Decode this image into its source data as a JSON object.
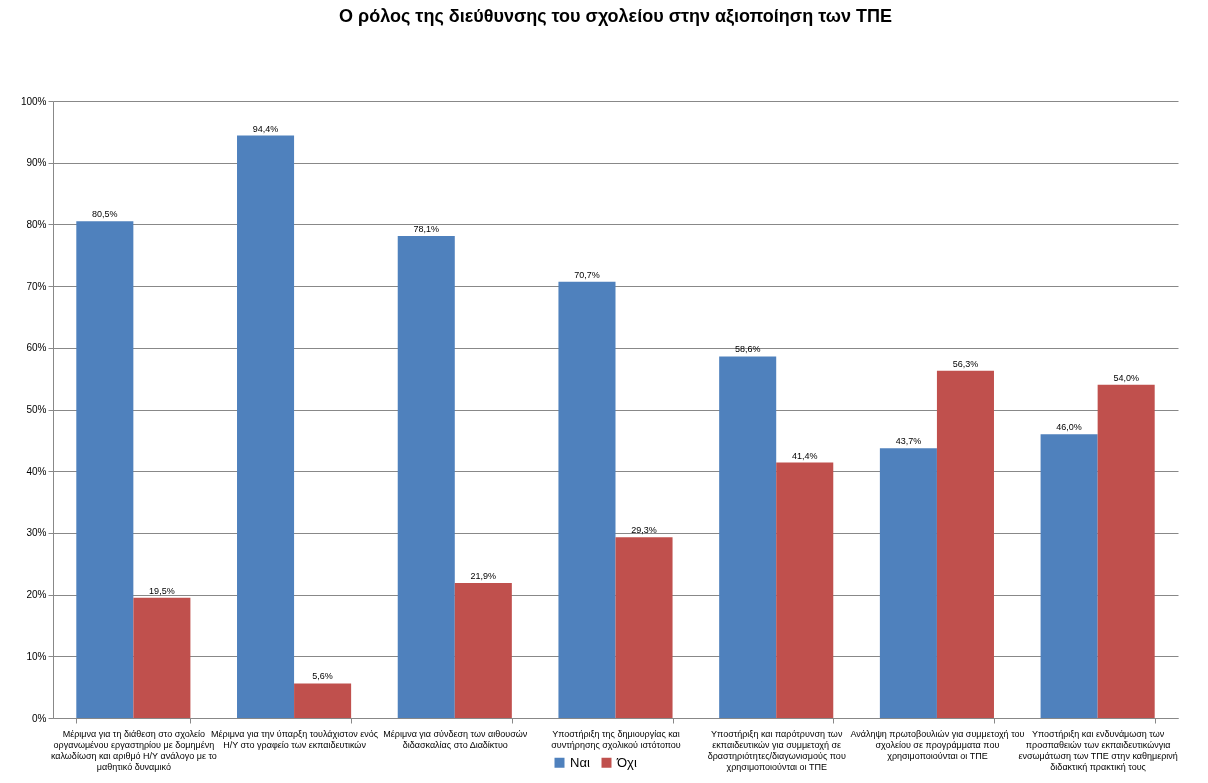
{
  "chart_data": {
    "type": "bar",
    "title": "Ο ρόλος της διεύθυνσης του σχολείου στην αξιοποίηση των ΤΠΕ",
    "categories": [
      "Μέριμνα για τη διάθεση στο σχολείο οργανωμένου εργαστηρίου με δομημένη καλωδίωση και αριθμό Η/Υ ανάλογο με το μαθητικό δυναμικό",
      "Μέριμνα για την ύπαρξη τουλάχιστον ενός Η/Υ στο γραφείο των εκπαιδευτικών",
      "Μέριμνα για σύνδεση των αιθουσών διδασκαλίας στο Διαδίκτυο",
      "Υποστήριξη της δημιουργίας και συντήρησης σχολικού ιστότοπου",
      "Υποστήριξη και παρότρυνση των εκπαιδευτικών για συμμετοχή σε δραστηριότητες/διαγωνισμούς που χρησιμοποιούνται οι ΤΠΕ",
      "Ανάληψη πρωτοβουλιών για συμμετοχή του σχολείου σε προγράμματα που χρησιμοποιούνται οι ΤΠΕ",
      "Υποστήριξη και ενδυνάμωση των προσπαθειών των εκπαιδευτικώνγια ενσωμάτωση των ΤΠΕ στην καθημερινή διδακτική πρακτική τους"
    ],
    "series": [
      {
        "name": "Ναι",
        "color": "#4f81bd",
        "values": [
          80.5,
          94.4,
          78.1,
          70.7,
          58.6,
          43.7,
          46.0
        ],
        "value_labels": [
          "80,5%",
          "94,4%",
          "78,1%",
          "70,7%",
          "58,6%",
          "43,7%",
          "46,0%"
        ]
      },
      {
        "name": "Όχι",
        "color": "#c0504d",
        "values": [
          19.5,
          5.6,
          21.9,
          29.3,
          41.4,
          56.3,
          54.0
        ],
        "value_labels": [
          "19,5%",
          "5,6%",
          "21,9%",
          "29,3%",
          "41,4%",
          "56,3%",
          "54,0%"
        ]
      }
    ],
    "ylim": [
      0,
      100
    ],
    "yticks": [
      {
        "value": 0,
        "label": "0%"
      },
      {
        "value": 10,
        "label": "10%"
      },
      {
        "value": 20,
        "label": "20%"
      },
      {
        "value": 30,
        "label": "30%"
      },
      {
        "value": 40,
        "label": "40%"
      },
      {
        "value": 50,
        "label": "50%"
      },
      {
        "value": 60,
        "label": "60%"
      },
      {
        "value": 70,
        "label": "70%"
      },
      {
        "value": 80,
        "label": "80%"
      },
      {
        "value": 90,
        "label": "90%"
      },
      {
        "value": 100,
        "label": "100%"
      }
    ],
    "grid": "y",
    "legend": "bottom"
  }
}
